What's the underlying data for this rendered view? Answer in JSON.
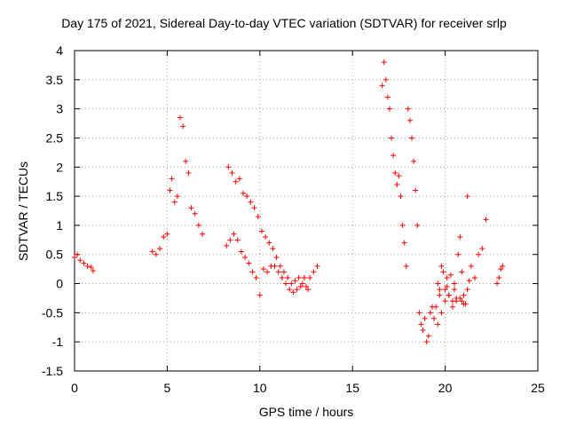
{
  "chart_data": {
    "type": "scatter",
    "title": "Day 175 of 2021, Sidereal Day-to-day VTEC variation (SDTVAR) for receiver srlp",
    "xlabel": "GPS time / hours",
    "ylabel": "SDTVAR / TECUs",
    "xlim": [
      0,
      25
    ],
    "ylim": [
      -1.5,
      4
    ],
    "xticks": [
      "0",
      "5",
      "10",
      "15",
      "20",
      "25"
    ],
    "yticks": [
      "-1.5",
      "-1",
      "-0.5",
      "0",
      "0.5",
      "1",
      "1.5",
      "2",
      "2.5",
      "3",
      "3.5",
      "4"
    ],
    "grid": true,
    "marker": "+",
    "color": "#ff0000",
    "series": [
      {
        "name": "SDTVAR",
        "x": [
          0.0,
          0.15,
          0.3,
          0.5,
          0.7,
          0.9,
          1.0,
          4.2,
          4.4,
          4.6,
          4.8,
          5.0,
          5.15,
          5.25,
          5.4,
          5.55,
          5.7,
          5.85,
          6.0,
          6.15,
          6.3,
          6.5,
          6.7,
          6.9,
          8.2,
          8.4,
          8.6,
          8.8,
          9.0,
          9.2,
          9.4,
          9.6,
          9.8,
          10.0,
          8.3,
          8.5,
          8.7,
          8.9,
          9.1,
          9.3,
          9.5,
          9.7,
          9.9,
          10.1,
          10.3,
          10.5,
          10.7,
          10.9,
          11.1,
          11.3,
          11.5,
          11.7,
          11.9,
          12.1,
          12.3,
          12.5,
          12.7,
          12.9,
          13.1,
          10.2,
          10.4,
          10.6,
          10.8,
          11.0,
          11.2,
          11.4,
          11.6,
          11.8,
          12.0,
          12.2,
          12.4,
          12.6,
          16.6,
          16.7,
          16.8,
          16.9,
          17.0,
          17.1,
          17.2,
          17.3,
          17.4,
          17.5,
          17.6,
          17.7,
          17.8,
          17.9,
          18.0,
          18.1,
          18.2,
          18.3,
          18.4,
          18.5,
          18.6,
          18.7,
          18.8,
          18.9,
          19.0,
          19.1,
          19.2,
          19.3,
          19.4,
          19.5,
          19.6,
          19.7,
          19.8,
          19.9,
          20.0,
          20.1,
          20.2,
          20.3,
          20.4,
          20.5,
          20.6,
          20.7,
          20.8,
          20.9,
          21.0,
          21.1,
          21.2,
          21.4,
          21.6,
          21.8,
          22.0,
          22.2,
          22.8,
          22.9,
          23.0,
          23.1,
          19.6,
          19.8,
          20.0,
          20.2,
          20.4,
          20.6,
          20.8,
          21.0,
          21.2,
          19.7,
          20.1,
          20.5,
          20.9,
          21.3
        ],
        "y": [
          0.45,
          0.5,
          0.4,
          0.35,
          0.3,
          0.28,
          0.22,
          0.55,
          0.5,
          0.6,
          0.8,
          0.85,
          1.6,
          1.8,
          1.4,
          1.5,
          2.85,
          2.7,
          2.1,
          1.9,
          1.3,
          1.2,
          1.0,
          0.85,
          0.65,
          0.75,
          0.85,
          0.75,
          0.55,
          0.45,
          0.35,
          0.2,
          0.1,
          -0.2,
          2.0,
          1.9,
          1.75,
          1.8,
          1.55,
          1.5,
          1.4,
          1.3,
          1.15,
          0.9,
          0.8,
          0.7,
          0.6,
          0.45,
          0.3,
          0.2,
          0.1,
          0.0,
          0.05,
          0.1,
          0.0,
          -0.05,
          0.1,
          0.2,
          0.3,
          0.25,
          0.2,
          0.3,
          0.3,
          0.2,
          0.1,
          0.0,
          -0.1,
          -0.15,
          -0.1,
          -0.05,
          0.1,
          -0.1,
          3.4,
          3.8,
          3.5,
          3.2,
          3.0,
          2.5,
          2.2,
          1.9,
          1.7,
          1.85,
          1.5,
          1.0,
          0.7,
          0.3,
          3.0,
          2.8,
          2.5,
          2.1,
          1.6,
          1.0,
          -0.5,
          -0.7,
          -0.8,
          -0.6,
          -1.0,
          -0.9,
          -0.5,
          -0.4,
          -0.6,
          -0.4,
          0.0,
          -0.2,
          0.3,
          0.2,
          -0.1,
          0.1,
          -0.2,
          0.15,
          -0.3,
          -0.1,
          -0.25,
          0.5,
          0.8,
          -0.3,
          -0.2,
          -0.35,
          1.5,
          0.3,
          0.1,
          0.5,
          0.6,
          1.1,
          0.0,
          0.1,
          0.25,
          0.3,
          -0.7,
          -0.5,
          -0.3,
          -0.2,
          -0.4,
          -0.3,
          -0.25,
          -0.35,
          -0.1,
          -0.1,
          -0.05,
          0.0,
          0.2,
          0.05
        ]
      }
    ]
  }
}
